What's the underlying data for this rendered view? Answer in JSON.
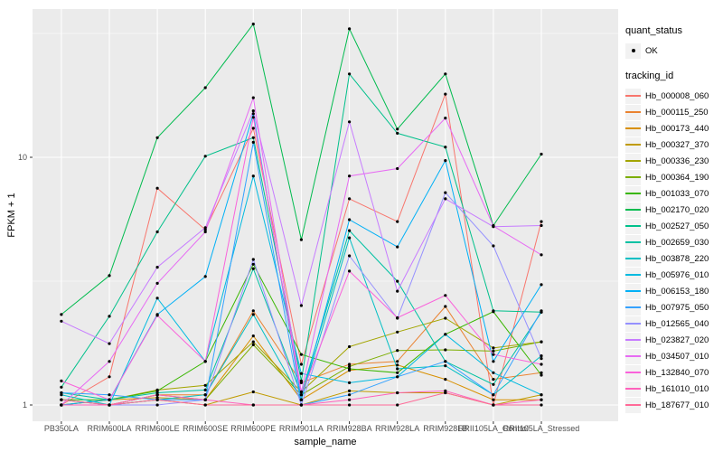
{
  "figure": {
    "y_axis": {
      "title": "FPKM + 1",
      "tick_labels": [
        "1",
        "10"
      ]
    },
    "x_axis": {
      "title": "sample_name"
    },
    "legend": {
      "quant_status": {
        "title": "quant_status",
        "items": [
          {
            "label": "OK"
          }
        ]
      },
      "tracking_id": {
        "title": "tracking_id"
      }
    },
    "colors": {
      "panel_bg": "#EBEBEB",
      "grid": "#FFFFFF",
      "tick_text": "#4D4D4D",
      "axis_text": "#000000",
      "legend_key_bg": "#F2F2F2",
      "point": "#000000"
    }
  },
  "chart_data": {
    "type": "line",
    "title": "",
    "xlabel": "sample_name",
    "ylabel": "FPKM + 1",
    "y_scale": "log10",
    "ylim": [
      1,
      40
    ],
    "y_ticks": [
      1,
      10
    ],
    "y_minor_gridlines": [
      3.1623,
      31.623
    ],
    "grid": true,
    "legend_position": "right",
    "point_status_all": "OK",
    "categories": [
      "PB350LA",
      "RRIM600LA",
      "RRIM600LE",
      "RRIM600SE",
      "RRIM600PE",
      "RRIM901LA",
      "RRIM928BA",
      "RRIM928LA",
      "RRIM928LB",
      "RRII105LA_Control",
      "RRII105LA_Stressed"
    ],
    "series": [
      {
        "name": "Hb_000008_060",
        "color": "#F8766D",
        "values": [
          1.0,
          1.3,
          7.5,
          5.1,
          13.1,
          1.46,
          6.8,
          5.5,
          18.0,
          1.0,
          5.5
        ]
      },
      {
        "name": "Hb_000115_250",
        "color": "#EA8331",
        "values": [
          1.0,
          1.0,
          1.1,
          1.1,
          2.4,
          1.23,
          1.46,
          1.5,
          2.5,
          1.27,
          1.35
        ]
      },
      {
        "name": "Hb_000173_440",
        "color": "#D89000",
        "values": [
          1.0,
          1.05,
          1.07,
          1.05,
          1.9,
          1.05,
          1.38,
          1.45,
          1.27,
          1.05,
          1.05
        ]
      },
      {
        "name": "Hb_000327_370",
        "color": "#C09B00",
        "values": [
          1.05,
          1.0,
          1.05,
          1.0,
          1.13,
          1.0,
          1.14,
          1.12,
          1.12,
          1.0,
          1.1
        ]
      },
      {
        "name": "Hb_000336_230",
        "color": "#A3A500",
        "values": [
          1.0,
          1.05,
          1.15,
          1.2,
          1.8,
          1.13,
          1.72,
          1.97,
          2.24,
          1.7,
          1.8
        ]
      },
      {
        "name": "Hb_000364_190",
        "color": "#7CAE00",
        "values": [
          1.0,
          1.0,
          1.1,
          1.05,
          1.75,
          1.1,
          1.43,
          1.66,
          1.67,
          1.65,
          1.8
        ]
      },
      {
        "name": "Hb_001033_070",
        "color": "#39B600",
        "values": [
          1.05,
          1.05,
          1.14,
          1.5,
          3.7,
          1.6,
          1.4,
          1.35,
          1.93,
          2.38,
          1.32
        ]
      },
      {
        "name": "Hb_002170_020",
        "color": "#00BB4E",
        "values": [
          2.32,
          3.33,
          12.0,
          19.1,
          34.5,
          4.65,
          33.0,
          13.0,
          21.7,
          5.3,
          10.3
        ]
      },
      {
        "name": "Hb_002527_050",
        "color": "#00C08B",
        "values": [
          1.18,
          2.28,
          5.0,
          10.1,
          12.0,
          1.25,
          21.7,
          12.5,
          11.0,
          2.4,
          2.37
        ]
      },
      {
        "name": "Hb_002659_030",
        "color": "#00C1A3",
        "values": [
          1.12,
          1.05,
          1.12,
          1.15,
          3.55,
          1.1,
          5.06,
          3.16,
          1.5,
          1.21,
          2.37
        ]
      },
      {
        "name": "Hb_003878_220",
        "color": "#00BFC4",
        "values": [
          1.1,
          1.0,
          1.05,
          1.1,
          2.32,
          1.05,
          4.73,
          1.4,
          1.44,
          1.1,
          1.58
        ]
      },
      {
        "name": "Hb_005976_010",
        "color": "#00BAE0",
        "values": [
          1.05,
          1.0,
          2.7,
          1.5,
          8.4,
          1.34,
          1.23,
          1.3,
          1.93,
          1.35,
          1.1
        ]
      },
      {
        "name": "Hb_006153_180",
        "color": "#00B0F6",
        "values": [
          1.0,
          1.05,
          2.32,
          3.3,
          15.0,
          1.05,
          5.6,
          4.35,
          9.7,
          1.5,
          3.06
        ]
      },
      {
        "name": "Hb_007975_050",
        "color": "#35A2FF",
        "values": [
          1.12,
          1.1,
          1.05,
          1.05,
          11.5,
          1.0,
          1.1,
          1.3,
          1.5,
          1.1,
          2.4
        ]
      },
      {
        "name": "Hb_012565_040",
        "color": "#9590FF",
        "values": [
          1.0,
          1.0,
          1.0,
          1.05,
          3.87,
          1.0,
          4.0,
          2.24,
          7.2,
          4.39,
          1.54
        ]
      },
      {
        "name": "Hb_023827_020",
        "color": "#C77CFF",
        "values": [
          2.18,
          1.77,
          3.6,
          5.2,
          15.4,
          2.52,
          13.9,
          2.88,
          6.8,
          5.25,
          5.3
        ]
      },
      {
        "name": "Hb_034507_010",
        "color": "#E76BF3",
        "values": [
          1.0,
          1.5,
          3.1,
          5.0,
          17.4,
          1.13,
          8.4,
          9.0,
          14.4,
          5.28,
          4.04
        ]
      },
      {
        "name": "Hb_132840_070",
        "color": "#FA62DB",
        "values": [
          1.25,
          1.05,
          2.3,
          1.5,
          14.5,
          1.1,
          3.47,
          2.25,
          2.77,
          1.6,
          1.46
        ]
      },
      {
        "name": "Hb_161010_010",
        "color": "#FF62BC",
        "values": [
          1.0,
          1.0,
          1.1,
          1.05,
          1.0,
          1.0,
          1.05,
          1.12,
          1.14,
          1.0,
          1.05
        ]
      },
      {
        "name": "Hb_187677_010",
        "color": "#FF6A98",
        "values": [
          1.05,
          1.0,
          1.05,
          1.0,
          1.0,
          1.0,
          1.0,
          1.0,
          1.12,
          1.0,
          1.0
        ]
      }
    ]
  }
}
